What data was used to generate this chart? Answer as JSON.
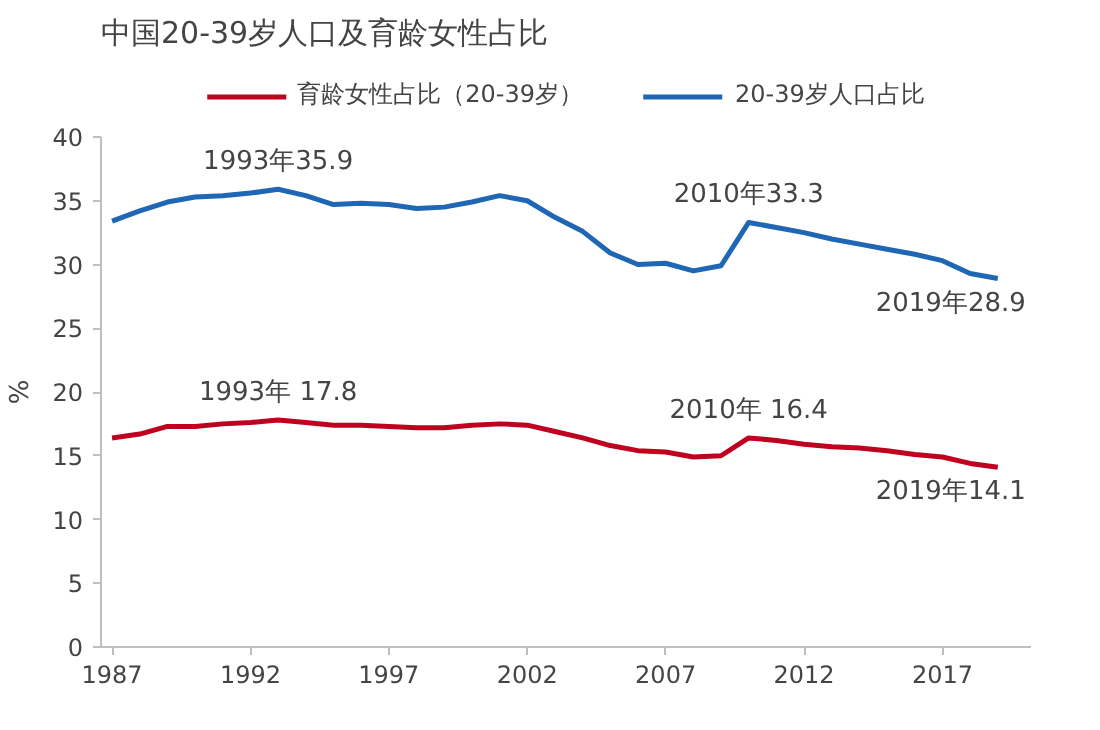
{
  "chart_data": {
    "type": "line",
    "title": "中国20-39岁人口及育龄女性占比",
    "ylabel": "%",
    "x": [
      1987,
      1988,
      1989,
      1990,
      1991,
      1992,
      1993,
      1994,
      1995,
      1996,
      1997,
      1998,
      1999,
      2000,
      2001,
      2002,
      2003,
      2004,
      2005,
      2006,
      2007,
      2008,
      2009,
      2010,
      2011,
      2012,
      2013,
      2014,
      2015,
      2016,
      2017,
      2018,
      2019
    ],
    "series": [
      {
        "name": "育龄女性占比（20-39岁）",
        "color": "#c0001f",
        "values": [
          16.4,
          16.7,
          17.3,
          17.3,
          17.5,
          17.6,
          17.8,
          17.6,
          17.4,
          17.4,
          17.3,
          17.2,
          17.2,
          17.4,
          17.5,
          17.4,
          16.9,
          16.4,
          15.8,
          15.4,
          15.3,
          14.9,
          15.0,
          16.4,
          16.2,
          15.9,
          15.7,
          15.6,
          15.4,
          15.1,
          14.9,
          14.4,
          14.1
        ]
      },
      {
        "name": "20-39岁人口占比",
        "color": "#1f66b5",
        "values": [
          33.4,
          34.2,
          34.9,
          35.3,
          35.4,
          35.6,
          35.9,
          35.4,
          34.7,
          34.8,
          34.7,
          34.4,
          34.5,
          34.9,
          35.4,
          35.0,
          33.7,
          32.6,
          30.9,
          30.0,
          30.1,
          29.5,
          29.9,
          33.3,
          32.9,
          32.5,
          32.0,
          31.6,
          31.2,
          30.8,
          30.3,
          29.3,
          28.9
        ]
      }
    ],
    "xlim": [
      1986.6,
      2020.2
    ],
    "xticks": [
      1987,
      1992,
      1997,
      2002,
      2007,
      2012,
      2017
    ],
    "ylim": [
      0,
      40
    ],
    "yticks": [
      0,
      5,
      10,
      15,
      20,
      25,
      30,
      35,
      40
    ],
    "grid": false,
    "legend": "top",
    "marker": "none",
    "line_style": "solid",
    "annotations": [
      {
        "text": "1993年 17.8",
        "x": 1993,
        "y": 17.8
      },
      {
        "text": "2010年 16.4",
        "x": 2010,
        "y": 16.4
      },
      {
        "text": "2019年14.1",
        "x": 2019,
        "y": 14.1
      },
      {
        "text": "1993年35.9",
        "x": 1993,
        "y": 35.9
      },
      {
        "text": "2010年33.3",
        "x": 2010,
        "y": 33.3
      },
      {
        "text": "2019年28.9",
        "x": 2019,
        "y": 28.9
      }
    ]
  }
}
